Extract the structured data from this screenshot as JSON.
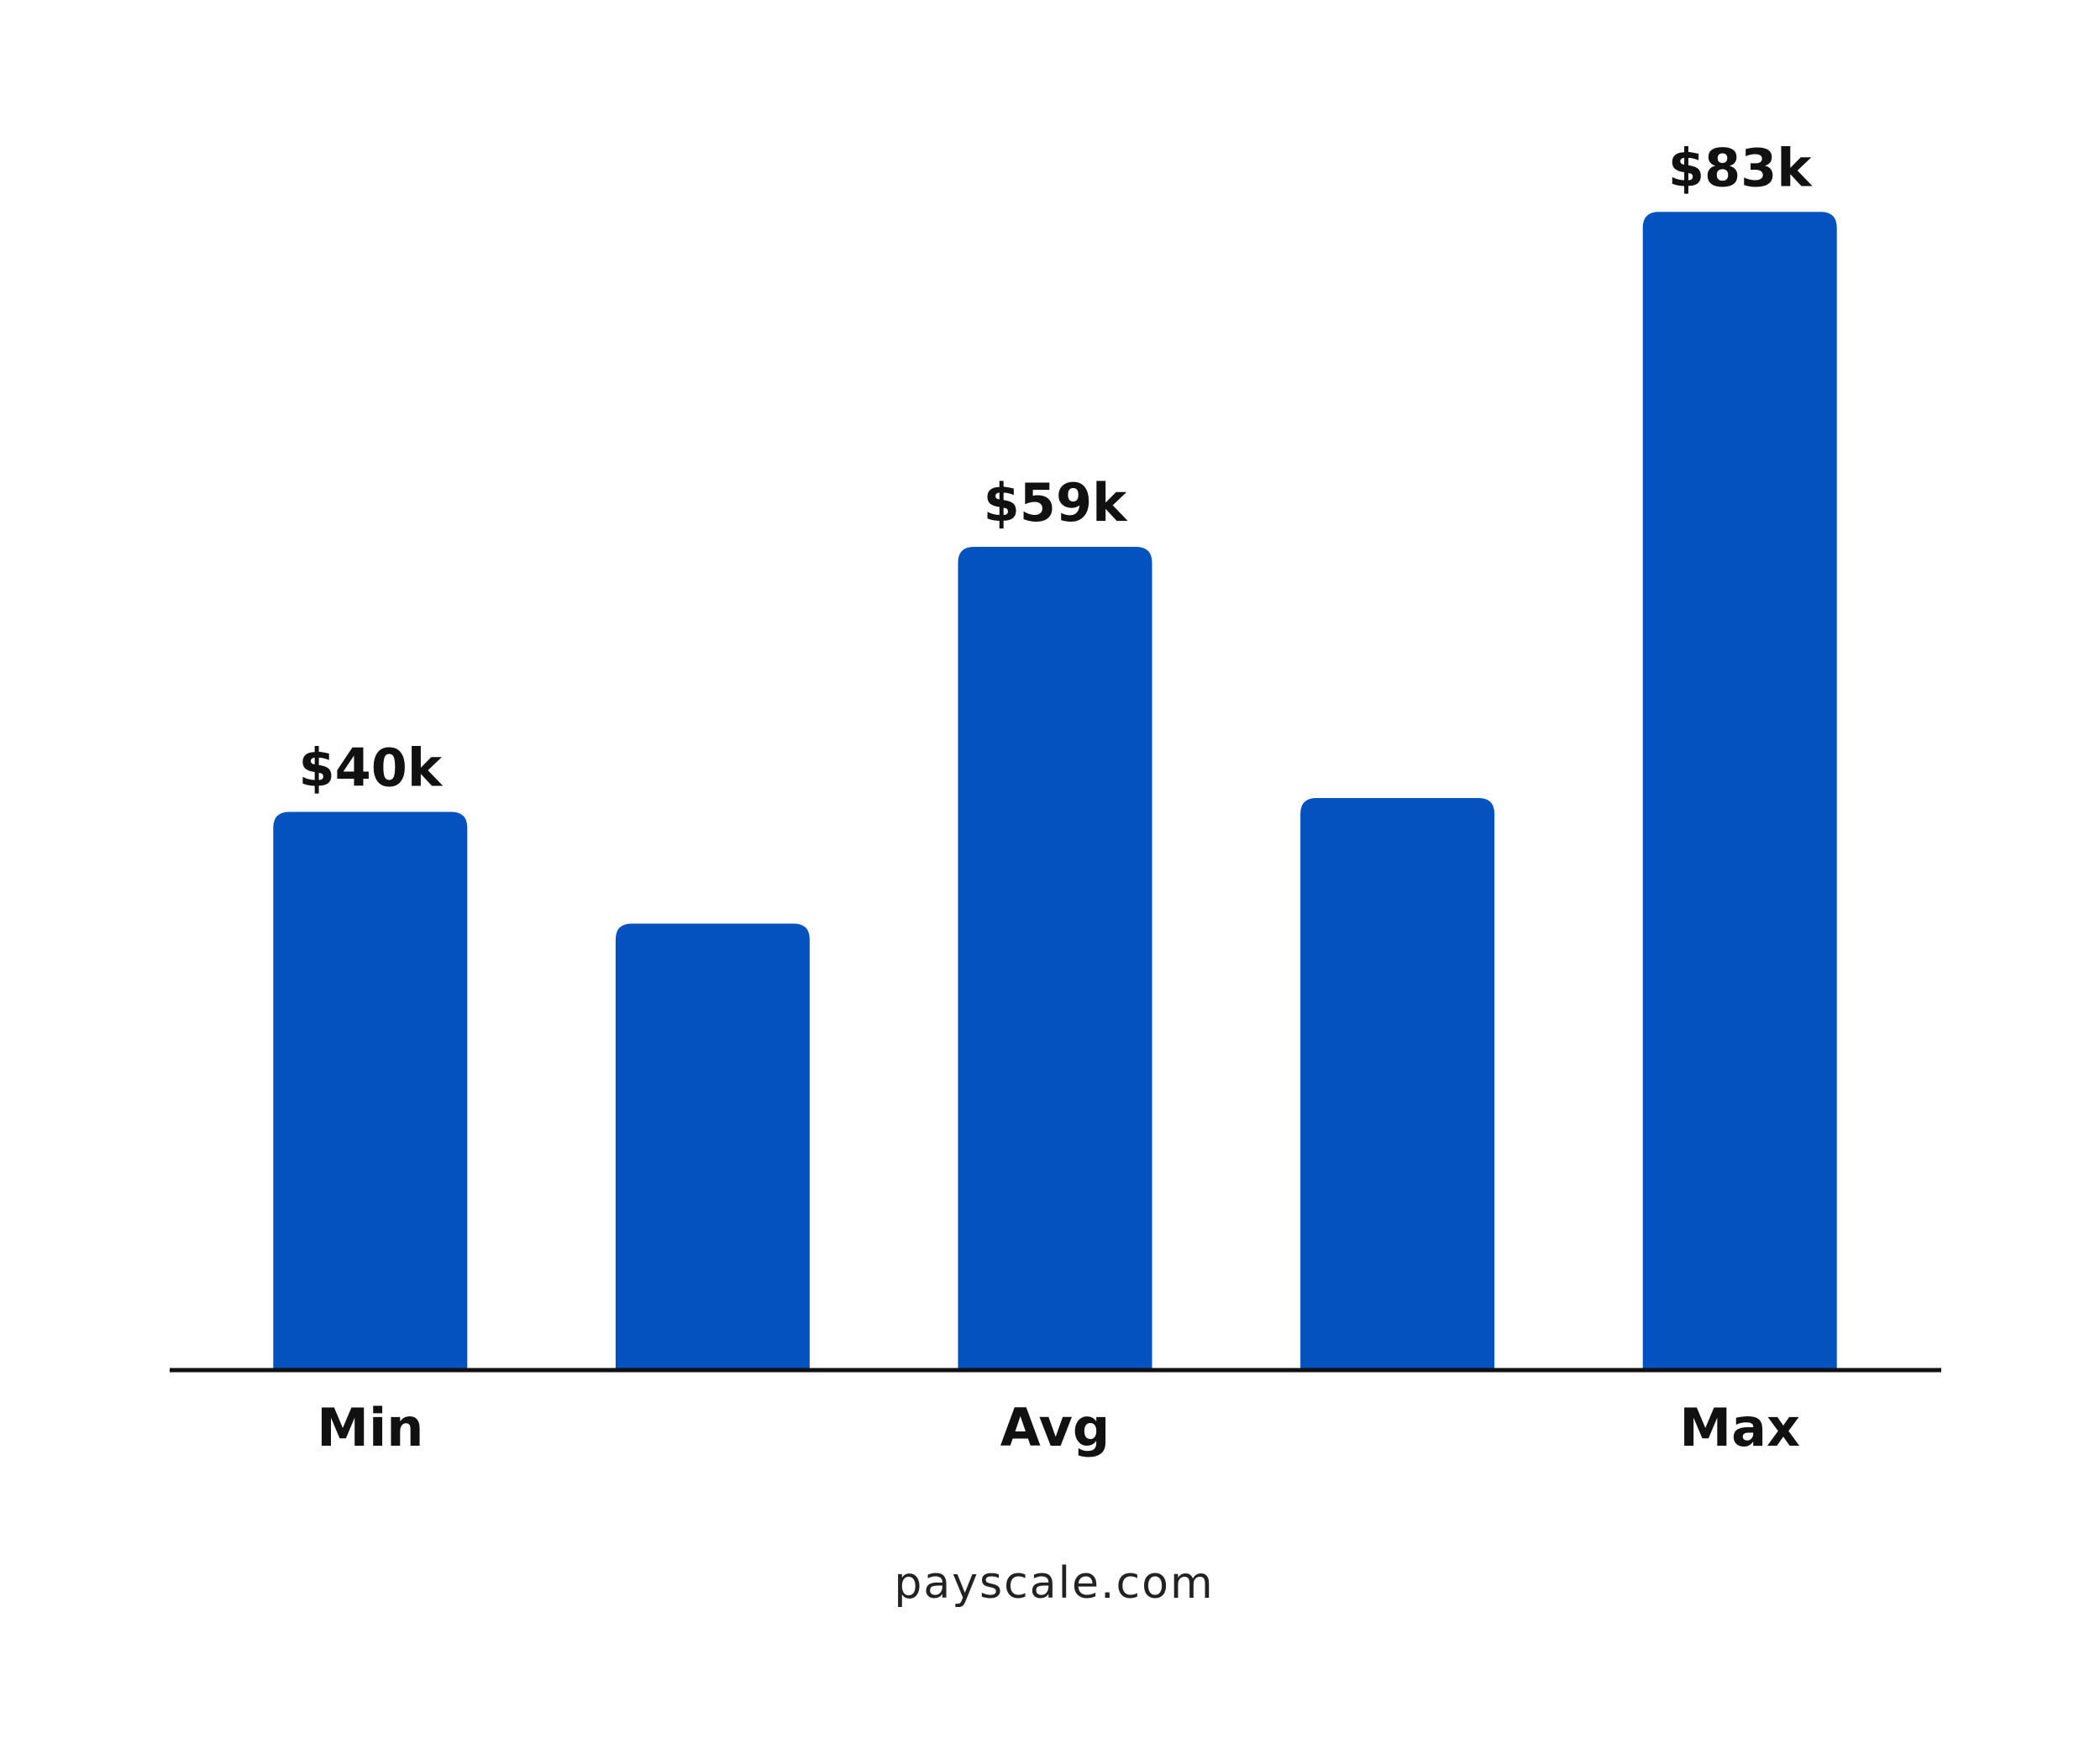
{
  "chart_data": {
    "type": "bar",
    "categories": [
      "Min",
      null,
      "Avg",
      null,
      "Max"
    ],
    "values": [
      40,
      32,
      59,
      41,
      83
    ],
    "value_labels": [
      "$40k",
      null,
      "$59k",
      null,
      "$83k"
    ],
    "color": "#0452bf",
    "ylim": [
      0,
      90
    ],
    "source": "payscale.com"
  }
}
